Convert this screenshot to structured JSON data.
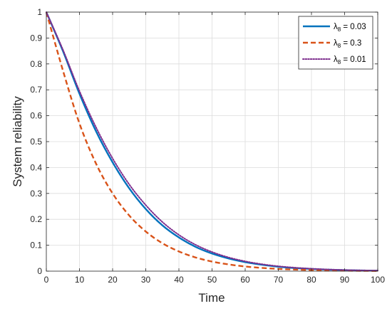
{
  "chart_data": {
    "type": "line",
    "xlabel": "Time",
    "ylabel": "System reliability",
    "xlim": [
      0,
      100
    ],
    "ylim": [
      0,
      1
    ],
    "xticks": [
      0,
      10,
      20,
      30,
      40,
      50,
      60,
      70,
      80,
      90,
      100
    ],
    "yticks": [
      0,
      0.1,
      0.2,
      0.3,
      0.4,
      0.5,
      0.6,
      0.7,
      0.8,
      0.9,
      1
    ],
    "grid": true,
    "legend_position": "top-right",
    "x": [
      0,
      5,
      10,
      15,
      20,
      25,
      30,
      35,
      40,
      45,
      50,
      55,
      60,
      65,
      70,
      75,
      80,
      85,
      90,
      95,
      100
    ],
    "series": [
      {
        "name": "λ8 = 0.03",
        "color": "#0072BD",
        "style": "solid",
        "values": [
          1.0,
          0.85,
          0.685,
          0.54,
          0.42,
          0.32,
          0.24,
          0.177,
          0.13,
          0.094,
          0.068,
          0.049,
          0.035,
          0.025,
          0.017,
          0.012,
          0.0085,
          0.0058,
          0.004,
          0.0027,
          0.0018
        ]
      },
      {
        "name": "λ8 = 0.3",
        "color": "#D95319",
        "style": "dashed",
        "values": [
          1.0,
          0.775,
          0.57,
          0.415,
          0.3,
          0.215,
          0.153,
          0.108,
          0.076,
          0.053,
          0.037,
          0.026,
          0.018,
          0.0125,
          0.0087,
          0.006,
          0.0041,
          0.0028,
          0.0019,
          0.0013,
          0.0009
        ]
      },
      {
        "name": "λ8 = 0.01",
        "color": "#7E2F8E",
        "style": "dotted",
        "values": [
          1.0,
          0.855,
          0.695,
          0.555,
          0.435,
          0.335,
          0.255,
          0.19,
          0.14,
          0.102,
          0.074,
          0.053,
          0.038,
          0.027,
          0.019,
          0.0135,
          0.0095,
          0.0066,
          0.0046,
          0.0032,
          0.0022
        ]
      }
    ]
  }
}
